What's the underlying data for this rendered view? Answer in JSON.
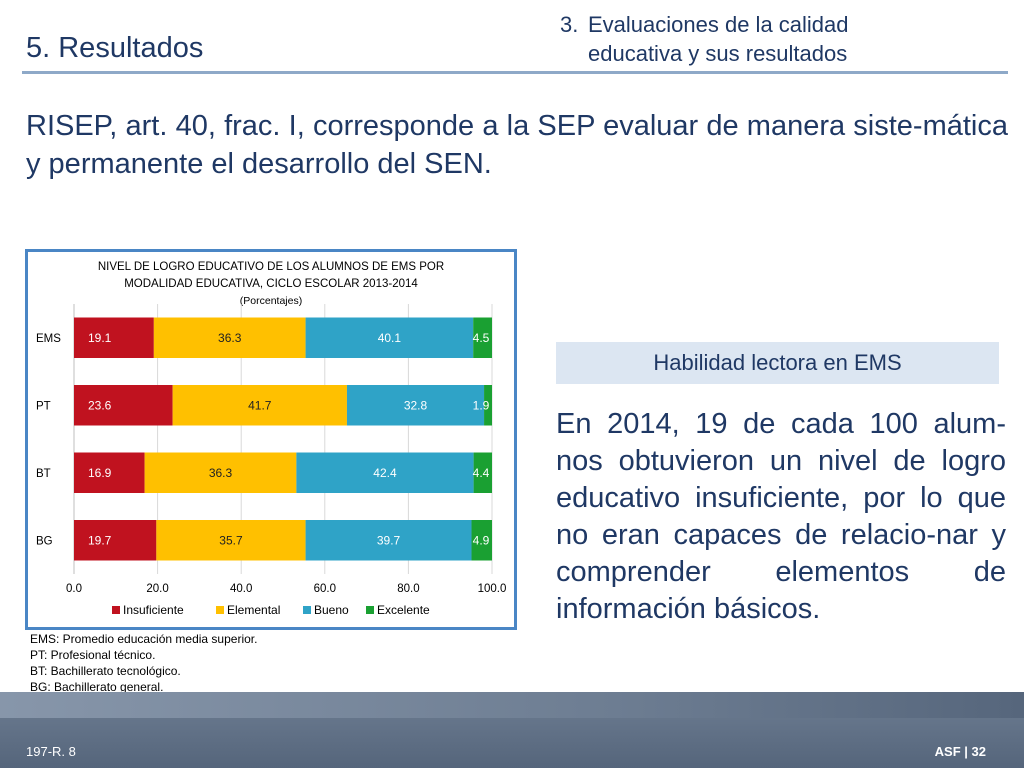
{
  "header": {
    "section_title": "5. Resultados",
    "topic_number": "3.",
    "topic_line1": "Evaluaciones de la calidad",
    "topic_line2": "educativa y sus resultados"
  },
  "lead_text": "RISEP, art. 40, frac. I, corresponde a la SEP evaluar de manera siste-mática y permanente el desarrollo del SEN.",
  "chart_data": {
    "type": "bar",
    "orientation": "horizontal",
    "stacked": true,
    "title": "NIVEL DE LOGRO EDUCATIVO DE LOS ALUMNOS DE EMS POR MODALIDAD EDUCATIVA, CICLO ESCOLAR 2013-2014",
    "title_line1": "NIVEL DE LOGRO EDUCATIVO DE LOS ALUMNOS DE EMS POR",
    "title_line2": "MODALIDAD EDUCATIVA, CICLO ESCOLAR 2013-2014",
    "subtitle": "(Porcentajes)",
    "categories": [
      "EMS",
      "PT",
      "BT",
      "BG"
    ],
    "series": [
      {
        "name": "Insuficiente",
        "color": "#c0121f",
        "values": [
          19.1,
          23.6,
          16.9,
          19.7
        ]
      },
      {
        "name": "Elemental",
        "color": "#ffc000",
        "values": [
          36.3,
          41.7,
          36.3,
          35.7
        ]
      },
      {
        "name": "Bueno",
        "color": "#2fa3c7",
        "values": [
          40.1,
          32.8,
          42.4,
          39.7
        ]
      },
      {
        "name": "Excelente",
        "color": "#1aa032",
        "values": [
          4.5,
          1.9,
          4.4,
          4.9
        ]
      }
    ],
    "xlim": [
      0,
      100
    ],
    "x_ticks": [
      "0.0",
      "20.0",
      "40.0",
      "60.0",
      "80.0",
      "100.0"
    ],
    "grid": true,
    "legend_position": "bottom"
  },
  "notes": [
    "EMS: Promedio educación media superior.",
    "PT: Profesional técnico.",
    "BT: Bachillerato tecnológico.",
    "BG: Bachillerato general."
  ],
  "side_heading": "Habilidad lectora en EMS",
  "side_text": "En 2014, 19 de cada 100 alum-nos obtuvieron un nivel de logro educativo insuficiente, por lo que no eran capaces de relacio-nar y comprender elementos de información básicos.",
  "footer": {
    "left": "197-R. 8",
    "right": "ASF | 32"
  }
}
